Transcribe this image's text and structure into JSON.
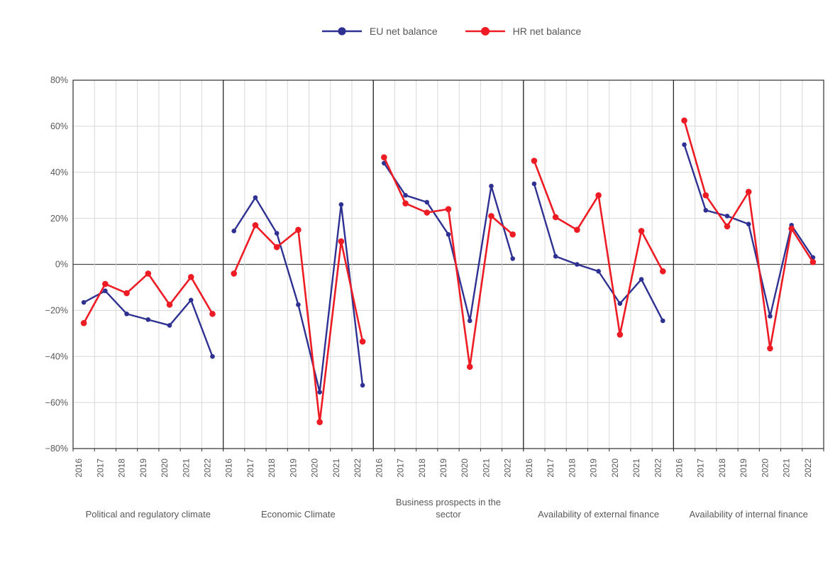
{
  "chart_data": {
    "type": "line",
    "title": "",
    "legend_position": "top",
    "grid": true,
    "legend": [
      {
        "name": "EU net balance",
        "color": "#2E3192"
      },
      {
        "name": "HR net balance",
        "color": "#ED1C24"
      }
    ],
    "x_categories": [
      "2016",
      "2017",
      "2018",
      "2019",
      "2020",
      "2021",
      "2022"
    ],
    "y_axis": {
      "min": -80,
      "max": 80,
      "step": 20,
      "tick_labels": [
        "80%",
        "60%",
        "40%",
        "20%",
        "0%",
        "−20%",
        "−40%",
        "−60%",
        "−80%"
      ]
    },
    "panels": [
      {
        "title": "Political and regulatory climate",
        "series": [
          {
            "name": "EU net balance",
            "values": [
              -16.5,
              -11.5,
              -21.5,
              -24,
              -26.5,
              -15.5,
              -40
            ]
          },
          {
            "name": "HR net balance",
            "values": [
              -25.5,
              -8.5,
              -12.5,
              -4,
              -17.5,
              -5.5,
              -21.5
            ]
          }
        ]
      },
      {
        "title": "Economic Climate",
        "series": [
          {
            "name": "EU net balance",
            "values": [
              14.5,
              29,
              13.5,
              -17.5,
              -55.5,
              26,
              -52.5
            ]
          },
          {
            "name": "HR net balance",
            "values": [
              -4,
              17,
              7.5,
              15,
              -68.5,
              10,
              -33.5
            ]
          }
        ]
      },
      {
        "title": "Business prospects in the\nsector",
        "series": [
          {
            "name": "EU net balance",
            "values": [
              44,
              30,
              27,
              13,
              -24.5,
              34,
              2.5
            ]
          },
          {
            "name": "HR net balance",
            "values": [
              46.5,
              26.5,
              22.5,
              24,
              -44.5,
              21,
              13
            ]
          }
        ]
      },
      {
        "title": "Availability of external finance",
        "series": [
          {
            "name": "EU net balance",
            "values": [
              35,
              3.5,
              0,
              -3,
              -17,
              -6.5,
              -24.5
            ]
          },
          {
            "name": "HR net balance",
            "values": [
              45,
              20.5,
              15,
              30,
              -30.5,
              14.5,
              -3
            ]
          }
        ]
      },
      {
        "title": "Availability of internal finance",
        "series": [
          {
            "name": "EU net balance",
            "values": [
              52,
              23.5,
              21,
              17.5,
              -22.5,
              17,
              3
            ]
          },
          {
            "name": "HR net balance",
            "values": [
              62.5,
              30,
              16.5,
              31.5,
              -36.5,
              15.5,
              1
            ]
          }
        ]
      }
    ]
  }
}
